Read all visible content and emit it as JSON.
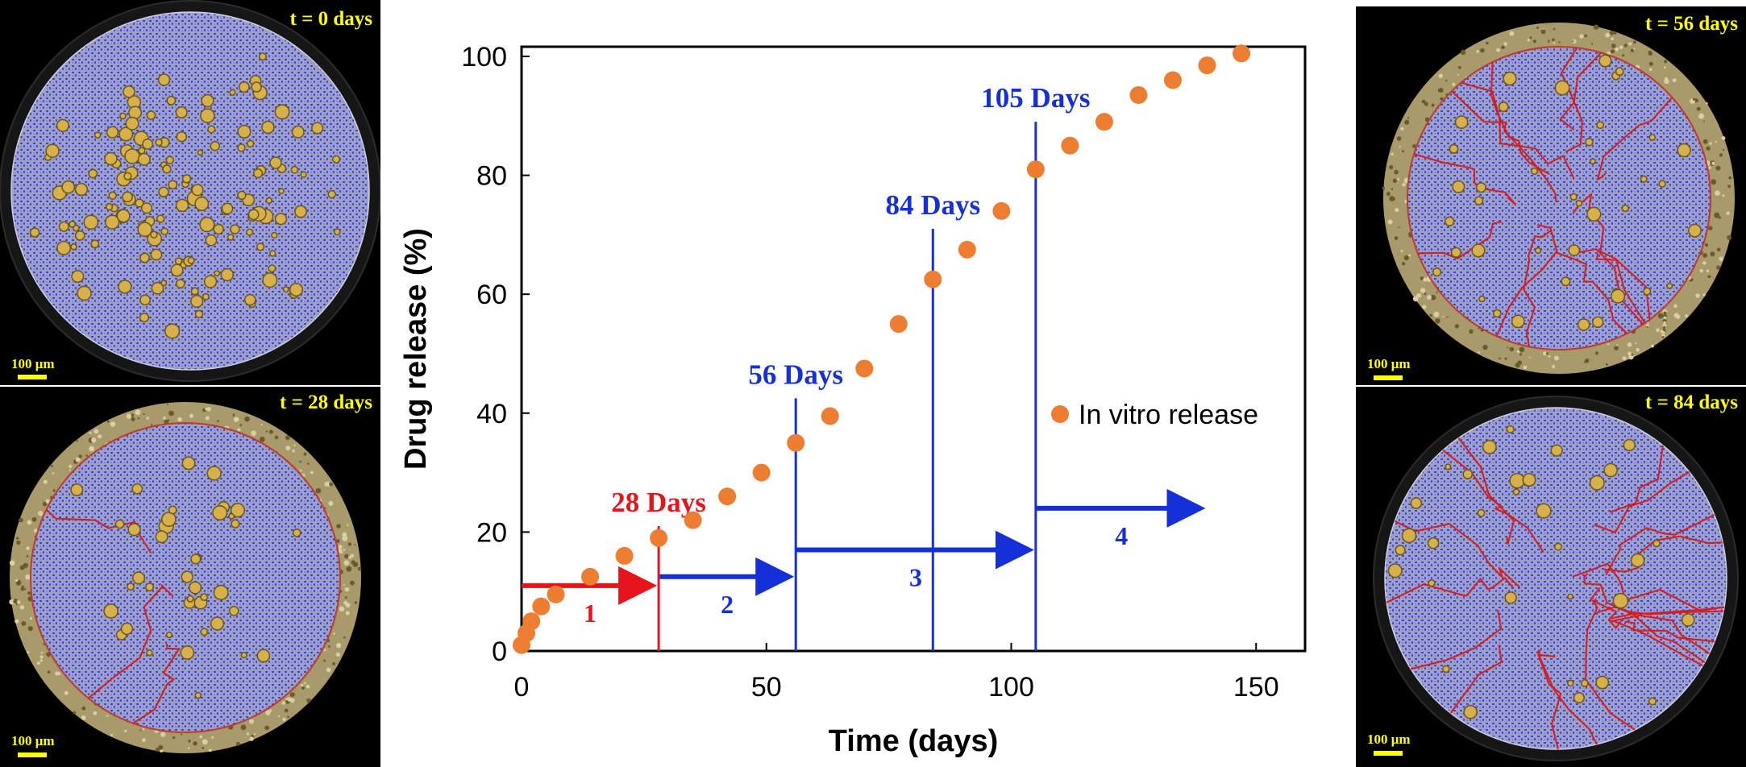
{
  "panels": [
    {
      "id": "p0",
      "time_label": "t = 0 days",
      "scale_label": "100 μm",
      "state": "intact"
    },
    {
      "id": "p28",
      "time_label": "t = 28 days",
      "scale_label": "100 μm",
      "state": "rim-eroded"
    },
    {
      "id": "p56",
      "time_label": "t = 56 days",
      "scale_label": "100 μm",
      "state": "fractured-rim"
    },
    {
      "id": "p84",
      "time_label": "t = 84 days",
      "scale_label": "100 μm",
      "state": "cracked"
    }
  ],
  "colors": {
    "background_panel": "#000000",
    "matrix": "#8c8fd4",
    "drug_particle": "#d6b04a",
    "crack": "#d81b1b",
    "label": "#ffff00",
    "points": "#ed7d31",
    "stage_red": "#e8141c",
    "stage_blue": "#1530d8"
  },
  "chart_data": {
    "type": "scatter",
    "title": "",
    "xlabel": "Time (days)",
    "ylabel": "Drug release (%)",
    "xlim": [
      0,
      160
    ],
    "ylim": [
      0,
      100
    ],
    "xticks": [
      0,
      50,
      100,
      150
    ],
    "yticks": [
      0,
      20,
      40,
      60,
      80,
      100
    ],
    "grid": false,
    "legend_position": "right",
    "series": [
      {
        "name": "In vitro release",
        "color": "#ed7d31",
        "x": [
          0,
          1,
          2,
          4,
          7,
          14,
          21,
          28,
          35,
          42,
          49,
          56,
          63,
          70,
          77,
          84,
          91,
          98,
          105,
          112,
          119,
          126,
          133,
          140,
          147
        ],
        "y": [
          1,
          3,
          5,
          7.5,
          9.5,
          12.5,
          16,
          19,
          22,
          26,
          30,
          35,
          39.5,
          47.5,
          55,
          62.5,
          67.5,
          74,
          81,
          85,
          89,
          93.5,
          96,
          98.5,
          100.5
        ]
      }
    ],
    "markers": [
      {
        "label": "28 Days",
        "x": 28,
        "top": 21,
        "color": "#e8141c"
      },
      {
        "label": "56 Days",
        "x": 56,
        "top": 42.5,
        "color": "#1530d8"
      },
      {
        "label": "84 Days",
        "x": 84,
        "top": 71,
        "color": "#1530d8"
      },
      {
        "label": "105 Days",
        "x": 105,
        "top": 89,
        "color": "#1530d8"
      }
    ],
    "stages": [
      {
        "label": "1",
        "x0": 0,
        "x1": 28,
        "y": 11,
        "color": "#e8141c"
      },
      {
        "label": "2",
        "x0": 28,
        "x1": 56,
        "y": 12.5,
        "color": "#1530d8"
      },
      {
        "label": "3",
        "x0": 56,
        "x1": 105,
        "y": 17,
        "color": "#1530d8"
      },
      {
        "label": "4",
        "x0": 105,
        "x1": 140,
        "y": 24,
        "color": "#1530d8"
      }
    ]
  }
}
